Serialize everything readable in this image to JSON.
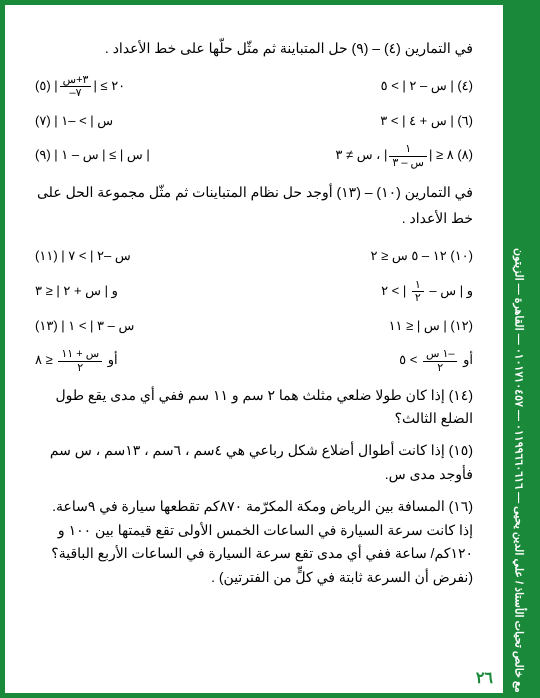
{
  "sidebar_text": "مع خالص تحيات الأستاذ / علي الدين يحيى — ٠١١٩٩٦٦٠٦١٦ — ٠١٠١٧١٠٤٥٧ — القاهرة — الزيتون",
  "intro1": "في التمارين (٤) – (٩) حل المتباينة ثم مثّل حلّها على خط الأعداد .",
  "ex4": "(٤)  | س – ٢ | > ٥",
  "ex5_pre": "٢٠ ≥ |",
  "ex5_num": "٣+س",
  "ex5_den": "–٧",
  "ex5_post": "| (٥)",
  "ex6": "(٦)  | س + ٤ | > ٣",
  "ex7": "(٧)  | س | > –١",
  "ex8_pre": "٨ ≤ |",
  "ex8_num": "١",
  "ex8_den": "س – ٣",
  "ex8_mid": "| ، س ≠ ٣",
  "ex8_label": "(٨)",
  "ex9": "(٩)  | س | ≥ | س – ١ |",
  "intro2": "في التمارين (١٠) – (١٣) أوجد حل نظام المتباينات ثم مثّل مجموعة الحل على خط الأعداد .",
  "ex10": "(١٠)  ١٢ – ٥ س ≤ ٢",
  "ex11": "(١١)  | س –٢ | > ٧",
  "ex10b_pre": "و  | س – ",
  "ex10b_num": "١",
  "ex10b_den": "٢",
  "ex10b_post": " | > ٢",
  "ex11b": "و  | س + ٢ | ≤ ٣",
  "ex12": "(١٢)  | س | ≤ ١١",
  "ex13": "(١٣)  | س – ٣ | > ١",
  "ex12b_pre": "أو  ",
  "ex12b_num": "–١ س",
  "ex12b_den": "٢",
  "ex12b_post": " > ٥",
  "ex13b_pre": "أو  ",
  "ex13b_num": "س + ١١",
  "ex13b_den": "٢",
  "ex13b_post": " ≤ ٨",
  "ex14": "(١٤) إذا كان طولا ضلعي مثلث هما ٢ سم و ١١ سم ففي أي مدى يقع طول الضلع الثالث؟",
  "ex15": "(١٥) إذا كانت أطوال أضلاع شكل رباعي هي ٤سم ، ٦سم ، ١٣سم ، س سم فأوجد مدى س.",
  "ex16": "(١٦) المسافة بين الرياض ومكة المكرّمة ٨٧٠كم تقطعها سيارة في ٩ساعة. إذا كانت سرعة السيارة في الساعات الخمس الأولى تقع قيمتها بين ١٠٠ و ١٢٠كم/ ساعة ففي أي مدى تقع سرعة السيارة في الساعات الأربع الباقية؟ (نفرض أن السرعة ثابتة في كلٍّ من الفترتين) .",
  "page_number": "٢٦",
  "colors": {
    "border": "#1a8a3a",
    "text": "#000000",
    "page_num": "#1a8a3a",
    "sidebar_bg": "#1a8a3a",
    "sidebar_text": "#ffffff"
  }
}
